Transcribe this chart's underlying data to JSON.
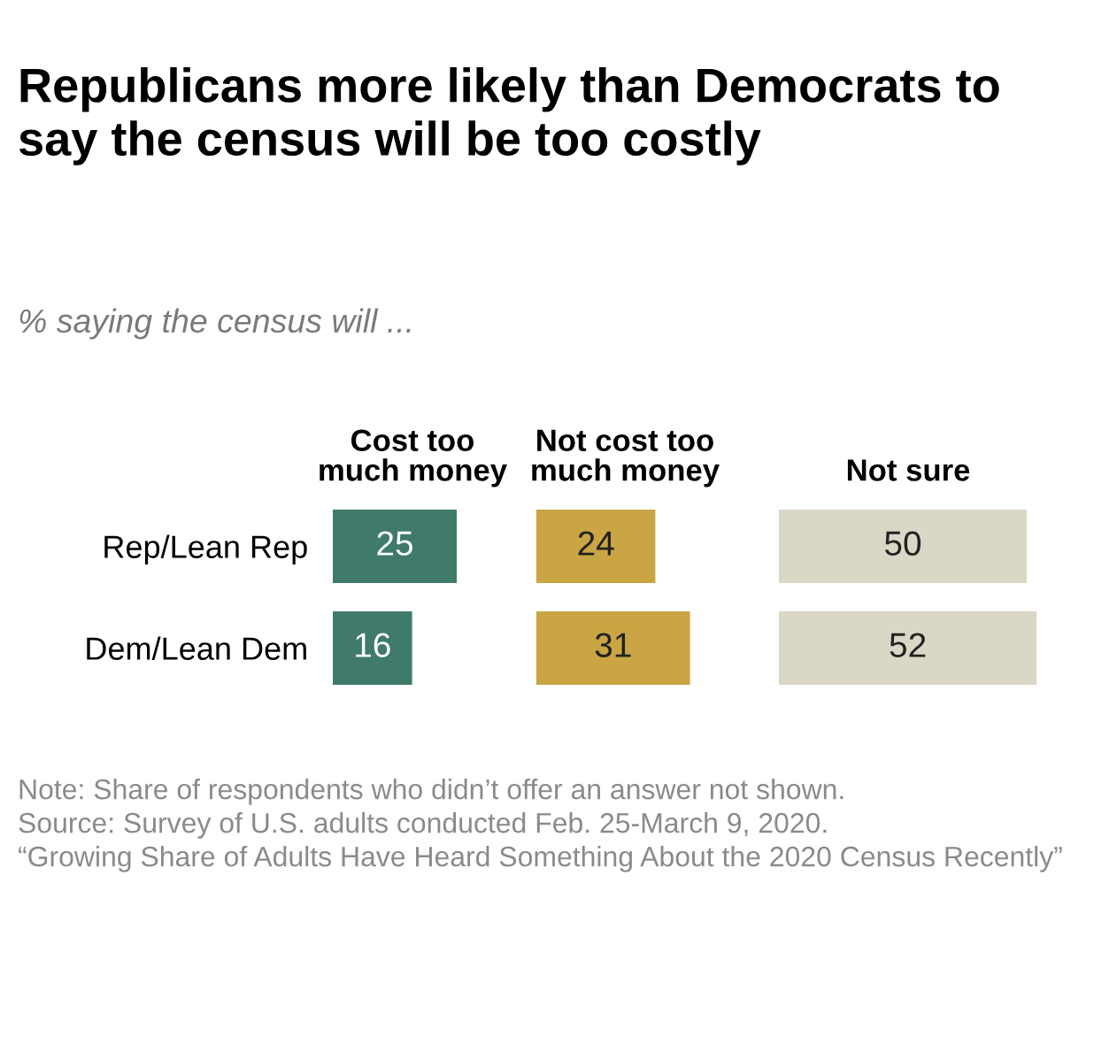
{
  "chart_data": [
    {
      "type": "bar",
      "orientation": "horizontal",
      "title": "Republicans more likely than Democrats to say the census will be too costly",
      "subtitle": "% saying the census will ...",
      "xlabel": "Cost too\nmuch money",
      "categories": [
        "Rep/Lean Rep",
        "Dem/Lean Dem"
      ],
      "values": [
        25,
        16
      ],
      "color": "#3f7a6a",
      "data_labels": true,
      "tick_labels": "y",
      "grid": false,
      "legend": false,
      "annotations": [
        "Note: Share of respondents who didn’t offer an answer not shown.",
        "Source: Survey of U.S. adults conducted Feb. 25-March 9, 2020.",
        "“Growing Share of Adults Have Heard Something About the 2020 Census Recently”"
      ]
    },
    {
      "type": "bar",
      "orientation": "horizontal",
      "xlabel": "Not cost too\nmuch money",
      "categories": [
        null,
        null
      ],
      "values": [
        24,
        31
      ],
      "color": "#c9a543",
      "data_labels": true,
      "tick_labels": false,
      "grid": false,
      "legend": false
    },
    {
      "type": "bar",
      "orientation": "horizontal",
      "xlabel": "Not sure",
      "categories": [
        null,
        null
      ],
      "values": [
        50,
        52
      ],
      "color": "#dbd7c6",
      "data_labels": true,
      "tick_labels": false,
      "grid": false,
      "legend": false
    }
  ]
}
